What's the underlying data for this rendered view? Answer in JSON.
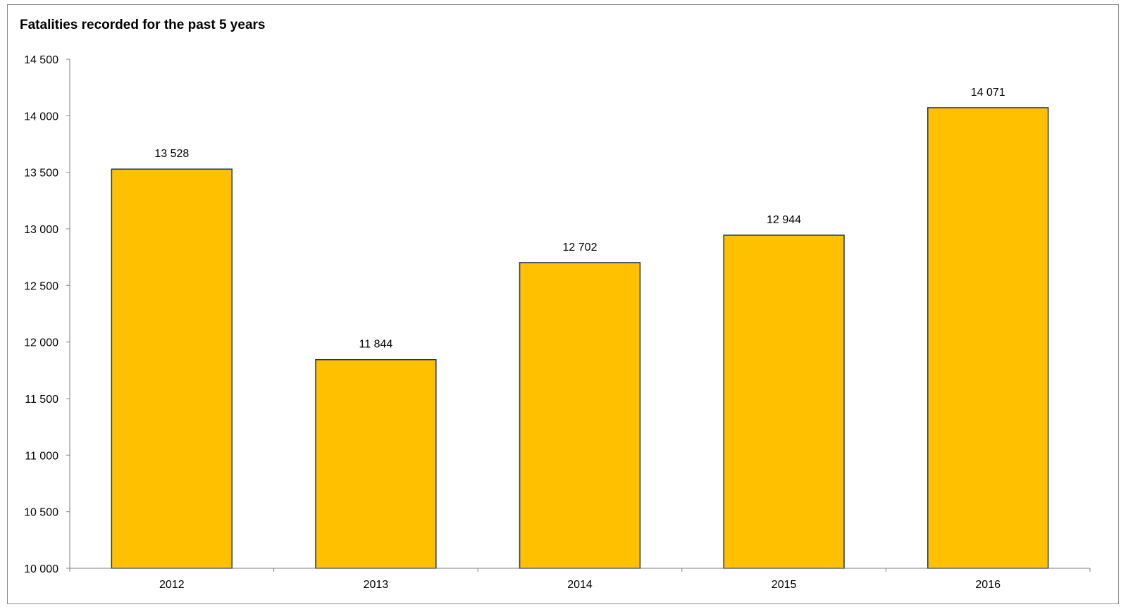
{
  "chart_data": {
    "type": "bar",
    "title": "Fatalities recorded for the past 5 years",
    "xlabel": "",
    "ylabel": "",
    "categories": [
      "2012",
      "2013",
      "2014",
      "2015",
      "2016"
    ],
    "values": [
      13528,
      11844,
      12702,
      12944,
      14071
    ],
    "value_labels": [
      "13 528",
      "11 844",
      "12 702",
      "12 944",
      "14 071"
    ],
    "ylim": [
      10000,
      14500
    ],
    "yticks": [
      10000,
      10500,
      11000,
      11500,
      12000,
      12500,
      13000,
      13500,
      14000,
      14500
    ],
    "ytick_labels": [
      "10 000",
      "10 500",
      "11 000",
      "11 500",
      "12 000",
      "12 500",
      "13 000",
      "13 500",
      "14 000",
      "14 500"
    ],
    "grid": false,
    "legend": "none",
    "colors": {
      "bar_fill": "#FFC000",
      "bar_stroke": "#1F3864",
      "axis": "#808080"
    }
  }
}
